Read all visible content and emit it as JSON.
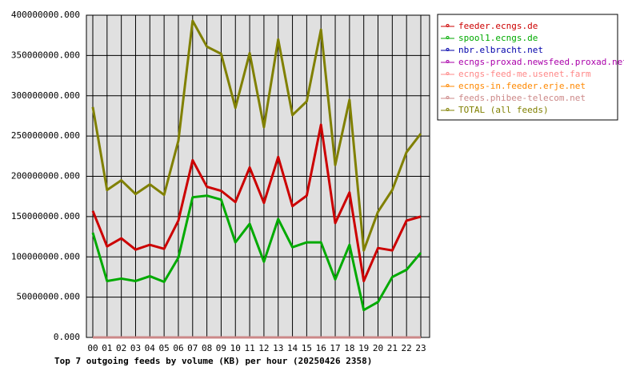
{
  "chart_data": {
    "type": "line",
    "title": "Top 7 outgoing feeds by volume (KB) per hour (20250426 2358)",
    "categories": [
      "00",
      "01",
      "02",
      "03",
      "04",
      "05",
      "06",
      "07",
      "08",
      "09",
      "10",
      "11",
      "12",
      "13",
      "14",
      "15",
      "16",
      "17",
      "18",
      "19",
      "20",
      "21",
      "22",
      "23"
    ],
    "ylim": [
      0,
      400000000
    ],
    "yticks": [
      {
        "value": 0,
        "label": "0.000"
      },
      {
        "value": 50000000,
        "label": "50000000.000"
      },
      {
        "value": 100000000,
        "label": "100000000.000"
      },
      {
        "value": 150000000,
        "label": "150000000.000"
      },
      {
        "value": 200000000,
        "label": "200000000.000"
      },
      {
        "value": 250000000,
        "label": "250000000.000"
      },
      {
        "value": 300000000,
        "label": "300000000.000"
      },
      {
        "value": 350000000,
        "label": "350000000.000"
      },
      {
        "value": 400000000,
        "label": "400000000.000"
      }
    ],
    "grid": true,
    "legend": "right",
    "series": [
      {
        "name": "feeder.ecngs.de",
        "color": "#cc0000",
        "values": [
          157000000,
          113000000,
          123000000,
          109000000,
          115000000,
          110000000,
          145000000,
          220000000,
          187000000,
          182000000,
          168000000,
          211000000,
          167000000,
          224000000,
          163000000,
          176000000,
          264000000,
          142000000,
          180000000,
          70000000,
          111000000,
          108000000,
          145000000,
          150000000
        ]
      },
      {
        "name": "spool1.ecngs.de",
        "color": "#00aa00",
        "values": [
          130000000,
          70000000,
          73000000,
          70000000,
          76000000,
          69000000,
          99000000,
          174000000,
          176000000,
          171000000,
          118000000,
          141000000,
          94000000,
          147000000,
          112000000,
          118000000,
          118000000,
          72000000,
          115000000,
          34000000,
          44000000,
          75000000,
          84000000,
          105000000
        ]
      },
      {
        "name": "nbr.elbracht.net",
        "color": "#0000aa",
        "values": [
          0,
          0,
          0,
          0,
          0,
          0,
          0,
          0,
          0,
          0,
          0,
          0,
          0,
          0,
          0,
          0,
          0,
          0,
          0,
          0,
          0,
          0,
          0,
          0
        ]
      },
      {
        "name": "ecngs-proxad.newsfeed.proxad.net",
        "color": "#aa00aa",
        "values": [
          0,
          0,
          0,
          0,
          0,
          0,
          0,
          0,
          0,
          0,
          0,
          0,
          0,
          0,
          0,
          0,
          0,
          0,
          0,
          0,
          0,
          0,
          0,
          0
        ]
      },
      {
        "name": "ecngs-feed-me.usenet.farm",
        "color": "#ff8888",
        "values": [
          0,
          0,
          0,
          0,
          0,
          0,
          0,
          0,
          0,
          0,
          0,
          0,
          0,
          0,
          0,
          0,
          0,
          0,
          0,
          0,
          0,
          0,
          0,
          0
        ]
      },
      {
        "name": "ecngs-in.feeder.erje.net",
        "color": "#ff8800",
        "values": [
          0,
          0,
          0,
          0,
          0,
          0,
          0,
          0,
          0,
          0,
          0,
          0,
          0,
          0,
          0,
          0,
          0,
          0,
          0,
          0,
          0,
          0,
          0,
          0
        ]
      },
      {
        "name": "feeds.phibee-telecom.net",
        "color": "#cc8888",
        "values": [
          0,
          0,
          0,
          0,
          0,
          0,
          0,
          0,
          0,
          0,
          0,
          0,
          0,
          0,
          0,
          0,
          0,
          0,
          0,
          0,
          0,
          0,
          0,
          0
        ]
      },
      {
        "name": "TOTAL (all feeds)",
        "color": "#808000",
        "values": [
          286000000,
          183000000,
          195000000,
          178000000,
          190000000,
          177000000,
          244000000,
          393000000,
          361000000,
          352000000,
          285000000,
          353000000,
          261000000,
          370000000,
          276000000,
          293000000,
          382000000,
          214000000,
          295000000,
          108000000,
          156000000,
          183000000,
          230000000,
          253000000
        ]
      }
    ]
  }
}
